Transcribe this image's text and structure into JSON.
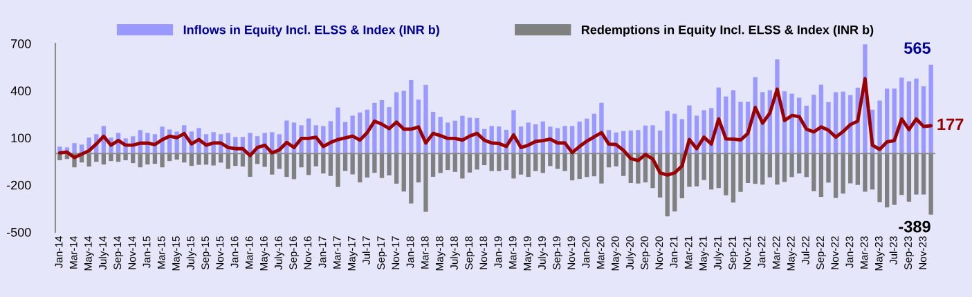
{
  "chart_data": {
    "type": "bar",
    "legend": "top",
    "stacked": true,
    "categories": [
      "Jan-14",
      null,
      "Mar-14",
      null,
      "May-14",
      null,
      "July-14",
      null,
      "Sep-14",
      null,
      "Nov-14",
      null,
      "Jan-15",
      null,
      "Mar-15",
      null,
      "May-15",
      null,
      "July-15",
      null,
      "Sep-15",
      null,
      "Nov-15",
      null,
      "Jan-16",
      null,
      "Mar-16",
      null,
      "May-16",
      null,
      "July-16",
      null,
      "Sep-16",
      null,
      "Nov-16",
      null,
      "Jan-17",
      null,
      "Mar-17",
      null,
      "May-17",
      null,
      "Jul-17",
      null,
      "Sep-17",
      null,
      "Nov-17",
      null,
      "Jan-18",
      null,
      "Mar-18",
      null,
      "May-18",
      null,
      "July-18",
      null,
      "Sep-18",
      null,
      "Nov-18",
      null,
      "Jan-19",
      null,
      "Mar-19",
      null,
      "May-19",
      null,
      "July-19",
      null,
      "Sep-19",
      null,
      "Nov-19",
      null,
      "Jan-20",
      null,
      "Mar-20",
      null,
      "May-20",
      null,
      "July-20",
      null,
      "Sep-20",
      null,
      "Nov-20",
      null,
      "Jan-21",
      null,
      "Mar-21",
      null,
      "May-21",
      null,
      "July-21",
      null,
      "Sep-21",
      null,
      "Nov-21",
      null,
      "Jan-22",
      null,
      "Mar-22",
      null,
      "May-22",
      null,
      "Jul-22",
      null,
      "Sep-22",
      null,
      "Nov-22",
      null,
      "Jan-23",
      null,
      "Mar-23",
      null,
      "May-23",
      null,
      "Jul-23",
      null,
      "Sep-23",
      null,
      "Nov-23",
      null
    ],
    "ylim": [
      -500,
      700
    ],
    "yticks": [
      -500,
      -200,
      100,
      400,
      700
    ],
    "series": [
      {
        "name": "Inflows in Equity Incl. ELSS & Index (INR b)",
        "color": "#9999ff",
        "values": [
          44,
          39,
          66,
          57,
          101,
          123,
          175,
          101,
          131,
          96,
          110,
          149,
          131,
          123,
          171,
          153,
          140,
          180,
          140,
          162,
          123,
          136,
          123,
          131,
          105,
          105,
          131,
          110,
          131,
          136,
          123,
          210,
          197,
          180,
          223,
          180,
          175,
          206,
          293,
          201,
          241,
          261,
          279,
          323,
          340,
          295,
          390,
          399,
          467,
          343,
          437,
          265,
          233,
          197,
          209,
          240,
          228,
          225,
          156,
          175,
          172,
          151,
          276,
          172,
          197,
          186,
          204,
          171,
          162,
          175,
          175,
          203,
          222,
          253,
          323,
          149,
          134,
          143,
          146,
          149,
          178,
          180,
          146,
          271,
          253,
          219,
          306,
          241,
          276,
          289,
          420,
          363,
          403,
          329,
          329,
          486,
          391,
          403,
          599,
          396,
          381,
          355,
          304,
          374,
          438,
          327,
          390,
          394,
          372,
          419,
          695,
          279,
          337,
          413,
          413,
          483,
          459,
          477,
          428,
          565
        ],
        "value_labels": [
          null,
          null,
          null,
          null,
          null,
          null,
          null,
          null,
          null,
          null,
          null,
          null,
          null,
          null,
          null,
          null,
          null,
          null,
          null,
          null,
          null,
          null,
          null,
          null,
          null,
          null,
          null,
          null,
          null,
          null,
          null,
          null,
          null,
          null,
          null,
          null,
          null,
          null,
          null,
          null,
          null,
          null,
          null,
          null,
          null,
          null,
          null,
          null,
          null,
          null,
          null,
          null,
          null,
          null,
          null,
          null,
          null,
          null,
          null,
          null,
          null,
          null,
          null,
          null,
          null,
          null,
          null,
          null,
          null,
          null,
          null,
          null,
          null,
          null,
          null,
          null,
          null,
          null,
          null,
          null,
          null,
          null,
          null,
          null,
          null,
          null,
          null,
          null,
          null,
          null,
          null,
          null,
          null,
          null,
          null,
          null,
          null,
          null,
          null,
          null,
          null,
          null,
          null,
          null,
          null,
          null,
          null,
          null,
          null,
          null,
          null,
          null,
          null,
          null,
          null,
          null,
          null,
          null,
          null,
          "565"
        ]
      },
      {
        "name": "Redemptions in Equity Incl. ELSS & Index (INR b)",
        "color": "#808080",
        "values": [
          -43,
          -35,
          -88,
          -57,
          -83,
          -53,
          -70,
          -48,
          -53,
          -43,
          -61,
          -88,
          -70,
          -66,
          -88,
          -48,
          -39,
          -57,
          -79,
          -72,
          -71,
          -76,
          -58,
          -98,
          -79,
          -83,
          -148,
          -67,
          -85,
          -134,
          -98,
          -149,
          -163,
          -88,
          -137,
          -82,
          -127,
          -143,
          -213,
          -111,
          -133,
          -184,
          -153,
          -123,
          -156,
          -139,
          -192,
          -242,
          -318,
          -184,
          -371,
          -148,
          -124,
          -105,
          -117,
          -159,
          -121,
          -102,
          -74,
          -112,
          -112,
          -105,
          -159,
          -134,
          -149,
          -112,
          -124,
          -80,
          -98,
          -112,
          -171,
          -162,
          -150,
          -145,
          -191,
          -88,
          -82,
          -143,
          -188,
          -191,
          -184,
          -220,
          -280,
          -400,
          -369,
          -285,
          -212,
          -209,
          -169,
          -229,
          -220,
          -266,
          -312,
          -244,
          -188,
          -193,
          -198,
          -152,
          -198,
          -181,
          -150,
          -127,
          -150,
          -240,
          -276,
          -185,
          -283,
          -255,
          -190,
          -200,
          -243,
          -229,
          -310,
          -343,
          -327,
          -264,
          -307,
          -261,
          -261,
          -389
        ],
        "value_labels": [
          null,
          null,
          null,
          null,
          null,
          null,
          null,
          null,
          null,
          null,
          null,
          null,
          null,
          null,
          null,
          null,
          null,
          null,
          null,
          null,
          null,
          null,
          null,
          null,
          null,
          null,
          null,
          null,
          null,
          null,
          null,
          null,
          null,
          null,
          null,
          null,
          null,
          null,
          null,
          null,
          null,
          null,
          null,
          null,
          null,
          null,
          null,
          null,
          null,
          null,
          null,
          null,
          null,
          null,
          null,
          null,
          null,
          null,
          null,
          null,
          null,
          null,
          null,
          null,
          null,
          null,
          null,
          null,
          null,
          null,
          null,
          null,
          null,
          null,
          null,
          null,
          null,
          null,
          null,
          null,
          null,
          null,
          null,
          null,
          null,
          null,
          null,
          null,
          null,
          null,
          null,
          null,
          null,
          null,
          null,
          null,
          null,
          null,
          null,
          null,
          null,
          null,
          null,
          null,
          null,
          null,
          null,
          null,
          null,
          null,
          null,
          null,
          null,
          null,
          null,
          null,
          null,
          null,
          null,
          "-389"
        ]
      },
      {
        "type": "line",
        "color": "#990000",
        "line_style": "solid",
        "values": [
          4,
          9,
          -26,
          -4,
          18,
          61,
          110,
          53,
          83,
          53,
          53,
          66,
          66,
          57,
          88,
          110,
          101,
          127,
          61,
          89,
          53,
          67,
          67,
          38,
          31,
          31,
          -13,
          38,
          53,
          4,
          23,
          70,
          38,
          96,
          96,
          104,
          45,
          70,
          89,
          99,
          111,
          85,
          133,
          206,
          187,
          158,
          200,
          155,
          155,
          169,
          67,
          128,
          114,
          96,
          96,
          85,
          111,
          128,
          85,
          67,
          64,
          45,
          118,
          38,
          53,
          77,
          82,
          92,
          67,
          67,
          6,
          45,
          79,
          106,
          133,
          60,
          57,
          20,
          -32,
          -45,
          -6,
          -35,
          -123,
          -137,
          -123,
          -79,
          89,
          31,
          104,
          60,
          220,
          93,
          92,
          86,
          128,
          293,
          193,
          257,
          410,
          210,
          242,
          235,
          155,
          137,
          169,
          148,
          104,
          140,
          184,
          206,
          476,
          53,
          26,
          74,
          82,
          220,
          152,
          220,
          172,
          177
        ],
        "value_labels": [
          null,
          null,
          null,
          null,
          null,
          null,
          null,
          null,
          null,
          null,
          null,
          null,
          null,
          null,
          null,
          null,
          null,
          null,
          null,
          null,
          null,
          null,
          null,
          null,
          null,
          null,
          null,
          null,
          null,
          null,
          null,
          null,
          null,
          null,
          null,
          null,
          null,
          null,
          null,
          null,
          null,
          null,
          null,
          null,
          null,
          null,
          null,
          null,
          null,
          null,
          null,
          null,
          null,
          null,
          null,
          null,
          null,
          null,
          null,
          null,
          null,
          null,
          null,
          null,
          null,
          null,
          null,
          null,
          null,
          null,
          null,
          null,
          null,
          null,
          null,
          null,
          null,
          null,
          null,
          null,
          null,
          null,
          null,
          null,
          null,
          null,
          null,
          null,
          null,
          null,
          null,
          null,
          null,
          null,
          null,
          null,
          null,
          null,
          null,
          null,
          null,
          null,
          null,
          null,
          null,
          null,
          null,
          null,
          null,
          null,
          null,
          null,
          null,
          null,
          null,
          null,
          null,
          null,
          null,
          "177"
        ]
      }
    ]
  }
}
